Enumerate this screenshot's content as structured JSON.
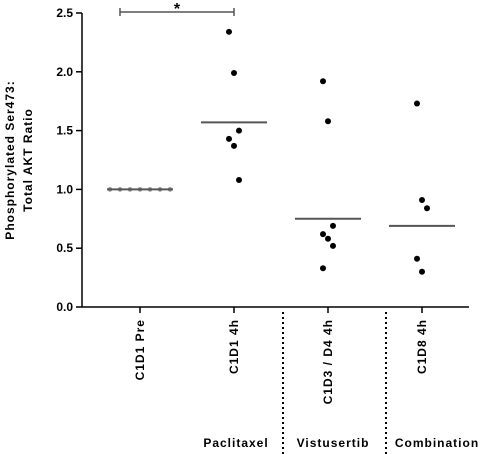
{
  "chart_data": {
    "type": "dot",
    "ylabel": [
      "Phosphorylated Ser473:",
      "Total AKT Ratio"
    ],
    "categories": [
      "C1D1 Pre",
      "C1D1 4h",
      "C1D3 / D4 4h",
      "C1D8 4h"
    ],
    "values": [
      [
        1.0,
        1.0,
        1.0,
        1.0,
        1.0,
        1.0,
        1.0
      ],
      [
        2.34,
        1.99,
        1.5,
        1.43,
        1.37,
        1.08
      ],
      [
        1.92,
        1.58,
        0.69,
        0.62,
        0.58,
        0.52,
        0.33
      ],
      [
        1.73,
        0.91,
        0.84,
        0.41,
        0.3
      ]
    ],
    "lines": [
      1.0,
      1.57,
      0.75,
      0.69
    ],
    "colors": [
      "#8c8c8c",
      "#000000",
      "#000000",
      "#000000"
    ],
    "ylim": [
      0,
      2.5
    ],
    "yticks": [
      {
        "value": 0,
        "label": "0.0"
      },
      {
        "value": 0.5,
        "label": "0.5"
      },
      {
        "value": 1,
        "label": "1.0"
      },
      {
        "value": 1.5,
        "label": "1.5"
      },
      {
        "value": 2,
        "label": "2.0"
      },
      {
        "value": 2.5,
        "label": "2.5"
      }
    ],
    "annotation": "*",
    "groups": [
      "Paclitaxel",
      "Vistusertib",
      "Combination"
    ]
  }
}
